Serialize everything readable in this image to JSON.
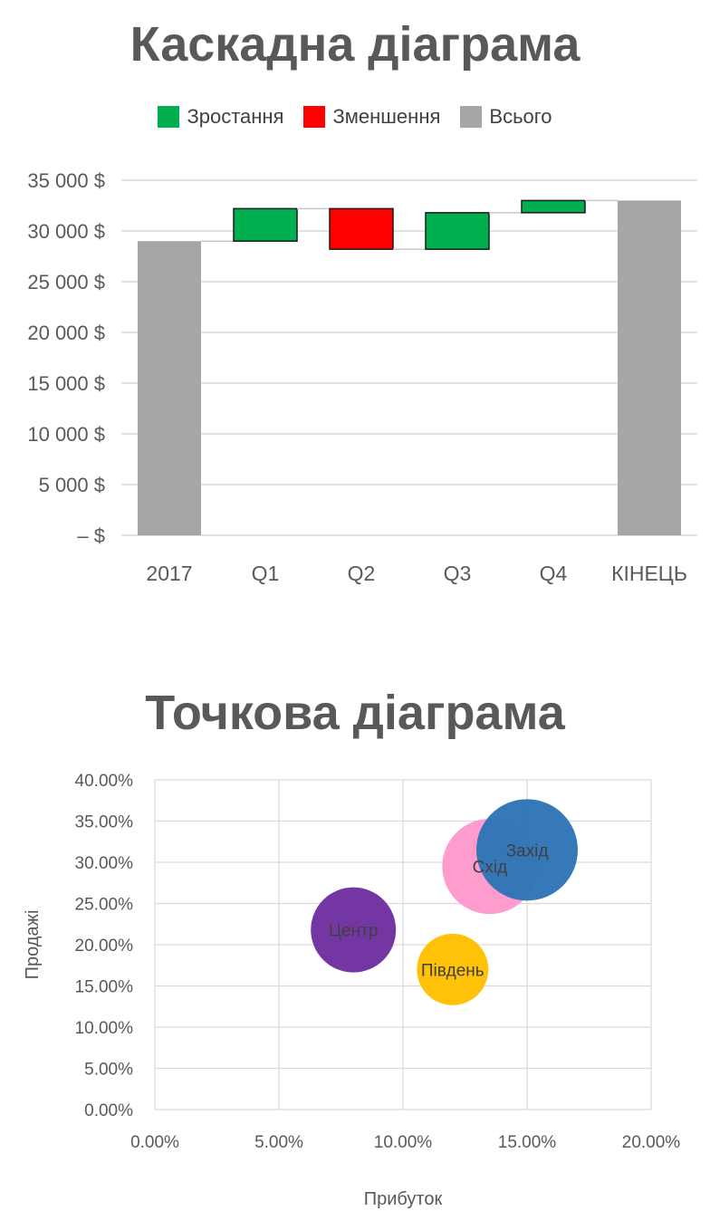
{
  "chart_data": [
    {
      "type": "bar",
      "subtype": "waterfall",
      "title": "Каскадна діаграма",
      "legend": {
        "placement": "top",
        "entries": [
          {
            "label": "Зростання",
            "color": "#00b050"
          },
          {
            "label": "Зменшення",
            "color": "#ff0000"
          },
          {
            "label": "Всього",
            "color": "#a6a6a6"
          }
        ]
      },
      "categories": [
        "2017",
        "Q1",
        "Q2",
        "Q3",
        "Q4",
        "КІНЕЦЬ"
      ],
      "bars": [
        {
          "category": "2017",
          "kind": "total",
          "start": 0,
          "end": 29000
        },
        {
          "category": "Q1",
          "kind": "increase",
          "start": 29000,
          "end": 32200
        },
        {
          "category": "Q2",
          "kind": "decrease",
          "start": 32200,
          "end": 28200
        },
        {
          "category": "Q3",
          "kind": "increase",
          "start": 28200,
          "end": 31800
        },
        {
          "category": "Q4",
          "kind": "increase",
          "start": 31800,
          "end": 33000
        },
        {
          "category": "КІНЕЦЬ",
          "kind": "total",
          "start": 0,
          "end": 33000
        }
      ],
      "ylim": [
        0,
        35000
      ],
      "ytick_values": [
        0,
        5000,
        10000,
        15000,
        20000,
        25000,
        30000,
        35000
      ],
      "ytick_labels": [
        "– $",
        "5 000 $",
        "10 000 $",
        "15 000 $",
        "20 000 $",
        "25 000 $",
        "30 000 $",
        "35 000 $"
      ],
      "grid": true,
      "connectors": true
    },
    {
      "type": "scatter",
      "subtype": "bubble",
      "title": "Точкова діаграма",
      "xlabel": "Прибуток",
      "ylabel": "Продажі",
      "xlim": [
        0,
        0.2
      ],
      "ylim": [
        0,
        0.4
      ],
      "xtick_values": [
        0,
        0.05,
        0.1,
        0.15,
        0.2
      ],
      "xtick_labels": [
        "0.00%",
        "5.00%",
        "10.00%",
        "15.00%",
        "20.00%"
      ],
      "ytick_values": [
        0,
        0.05,
        0.1,
        0.15,
        0.2,
        0.25,
        0.3,
        0.35,
        0.4
      ],
      "ytick_labels": [
        "0.00%",
        "5.00%",
        "10.00%",
        "15.00%",
        "20.00%",
        "25.00%",
        "30.00%",
        "35.00%",
        "40.00%"
      ],
      "grid": true,
      "points": [
        {
          "label": "Схід",
          "x": 0.135,
          "y": 0.295,
          "size": 1.1,
          "color": "#ff99cc"
        },
        {
          "label": "Центр",
          "x": 0.08,
          "y": 0.218,
          "size": 0.88,
          "color": "#7030a0"
        },
        {
          "label": "Південь",
          "x": 0.12,
          "y": 0.17,
          "size": 0.62,
          "color": "#ffc000"
        },
        {
          "label": "Захід",
          "x": 0.15,
          "y": 0.315,
          "size": 1.25,
          "color": "#2e75b6"
        }
      ]
    }
  ]
}
